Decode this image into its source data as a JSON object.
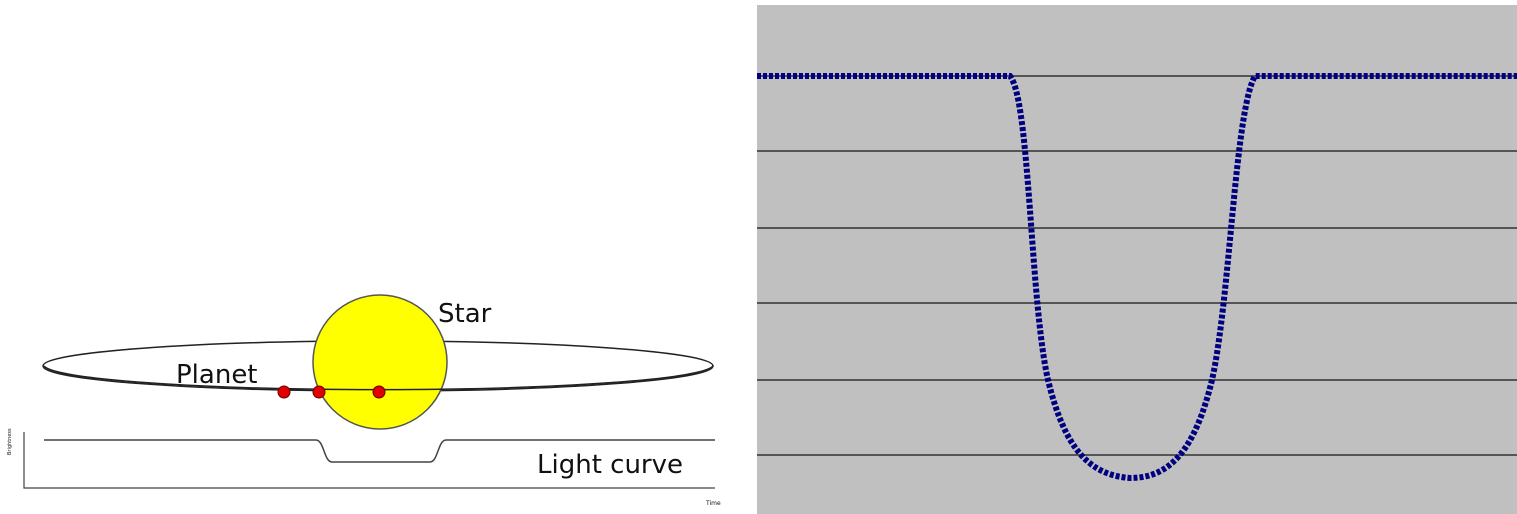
{
  "labels": {
    "star": "Star",
    "planet": "Planet",
    "light_curve": "Light curve",
    "y_axis": "Brightness",
    "x_axis": "Time"
  }
}
